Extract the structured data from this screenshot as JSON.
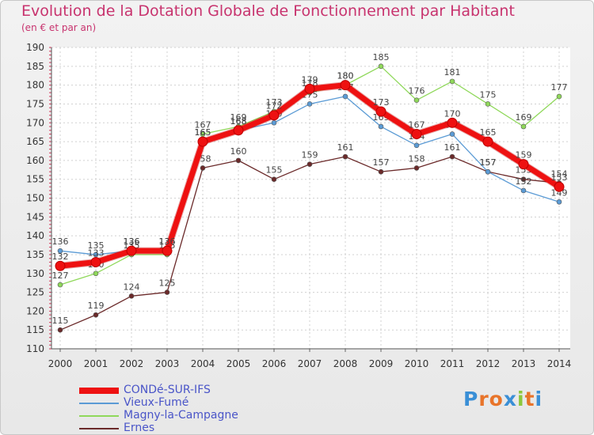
{
  "chart_data": {
    "type": "line",
    "title": "Evolution de la Dotation Globale de Fonctionnement par Habitant",
    "subtitle": "(en € et par an)",
    "x": [
      "2000",
      "2001",
      "2002",
      "2003",
      "2004",
      "2005",
      "2006",
      "2007",
      "2008",
      "2009",
      "2010",
      "2011",
      "2012",
      "2013",
      "2014"
    ],
    "ylim": [
      110,
      190
    ],
    "yticks": [
      110,
      115,
      120,
      125,
      130,
      135,
      140,
      145,
      150,
      155,
      160,
      165,
      170,
      175,
      180,
      185,
      190
    ],
    "series": [
      {
        "name": "Ernes",
        "color": "#6b2a2a",
        "values": [
          115,
          119,
          124,
          125,
          158,
          160,
          155,
          159,
          161,
          157,
          158,
          161,
          157,
          155,
          154
        ]
      },
      {
        "name": "Magny-la-Campagne",
        "color": "#8fd85a",
        "values": [
          127,
          130,
          135,
          135,
          167,
          169,
          173,
          178,
          180,
          185,
          176,
          181,
          175,
          169,
          177
        ]
      },
      {
        "name": "Vieux-Fumé",
        "color": "#5b9bd5",
        "values": [
          136,
          135,
          136,
          136,
          165,
          168,
          170,
          175,
          177,
          169,
          164,
          167,
          157,
          152,
          149
        ]
      },
      {
        "name": "CONDé-SUR-IFS",
        "color": "#ee1111",
        "values": [
          132,
          133,
          136,
          136,
          165,
          168,
          172,
          179,
          180,
          173,
          167,
          170,
          165,
          159,
          153
        ]
      }
    ],
    "legend_order": [
      "CONDé-SUR-IFS",
      "Vieux-Fumé",
      "Magny-la-Campagne",
      "Ernes"
    ]
  },
  "logo_text": "Proxiti",
  "logo_colors": [
    "#3a8fd6",
    "#e8742a",
    "#e8742a",
    "#3a8fd6",
    "#8cc83c",
    "#e8742a",
    "#3a8fd6"
  ]
}
